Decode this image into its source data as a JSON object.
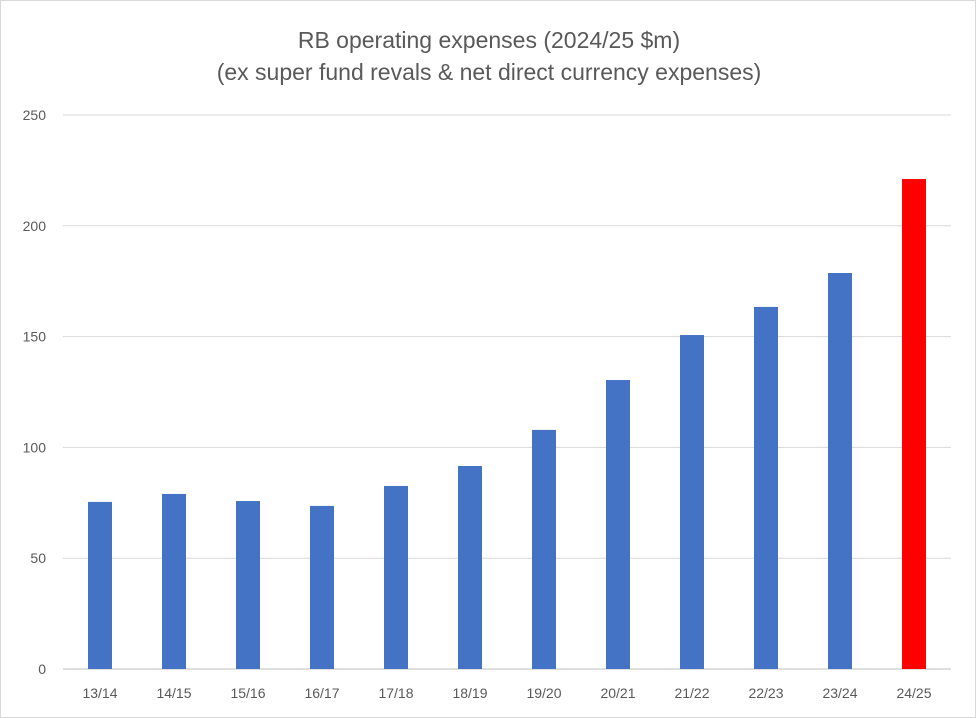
{
  "chart_data": {
    "type": "bar",
    "title": "RB operating expenses (2024/25 $m)",
    "subtitle": "(ex super fund revals & net direct currency expenses)",
    "xlabel": "",
    "ylabel": "",
    "categories": [
      "13/14",
      "14/15",
      "15/16",
      "16/17",
      "17/18",
      "18/19",
      "19/20",
      "20/21",
      "21/22",
      "22/23",
      "23/24",
      "24/25"
    ],
    "values": [
      75.4,
      79,
      75.8,
      73.6,
      82.6,
      91.6,
      107.9,
      130.4,
      150.7,
      163.4,
      178.7,
      221.1
    ],
    "colors": [
      "#4472c4",
      "#4472c4",
      "#4472c4",
      "#4472c4",
      "#4472c4",
      "#4472c4",
      "#4472c4",
      "#4472c4",
      "#4472c4",
      "#4472c4",
      "#4472c4",
      "#ff0000"
    ],
    "ylim": [
      0,
      250
    ],
    "yticks": [
      0,
      50,
      100,
      150,
      200,
      250
    ],
    "grid": true,
    "legend": "none"
  }
}
